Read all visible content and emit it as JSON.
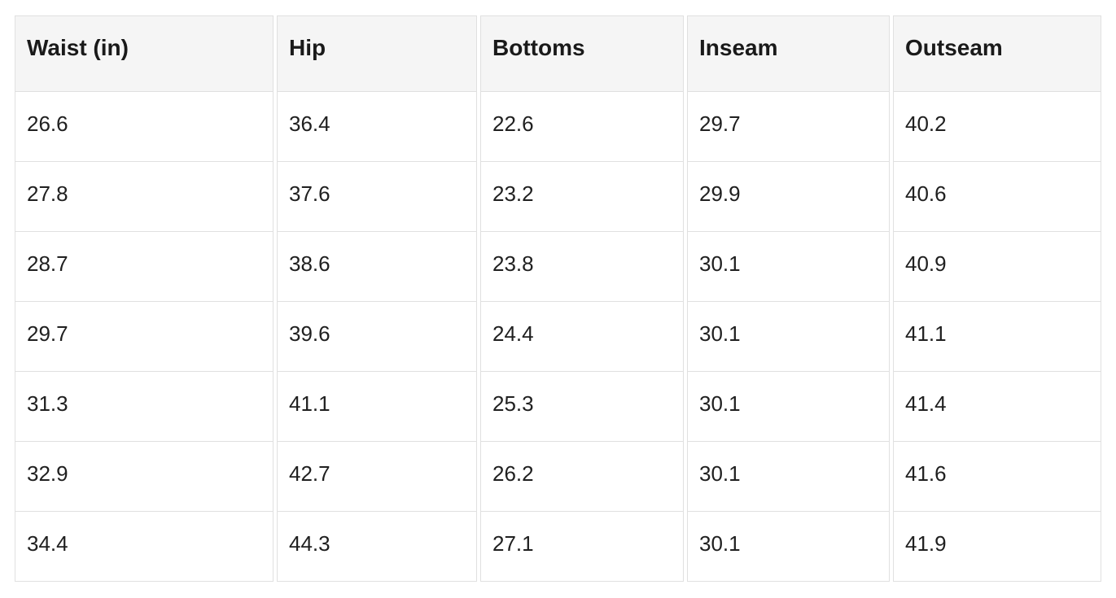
{
  "page": {
    "background": "#ffffff"
  },
  "table": {
    "name": "size-chart",
    "header_bg": "#f5f5f5",
    "border_color": "#e0e0e0",
    "text_color": "#202020",
    "columns": [
      "Waist (in)",
      "Hip",
      "Bottoms",
      "Inseam",
      "Outseam"
    ],
    "rows": [
      [
        "26.6",
        "36.4",
        "22.6",
        "29.7",
        "40.2"
      ],
      [
        "27.8",
        "37.6",
        "23.2",
        "29.9",
        "40.6"
      ],
      [
        "28.7",
        "38.6",
        "23.8",
        "30.1",
        "40.9"
      ],
      [
        "29.7",
        "39.6",
        "24.4",
        "30.1",
        "41.1"
      ],
      [
        "31.3",
        "41.1",
        "25.3",
        "30.1",
        "41.4"
      ],
      [
        "32.9",
        "42.7",
        "26.2",
        "30.1",
        "41.6"
      ],
      [
        "34.4",
        "44.3",
        "27.1",
        "30.1",
        "41.9"
      ]
    ]
  },
  "chart_data": {
    "type": "table",
    "title": "",
    "columns": [
      "Waist (in)",
      "Hip",
      "Bottoms",
      "Inseam",
      "Outseam"
    ],
    "rows": [
      [
        26.6,
        36.4,
        22.6,
        29.7,
        40.2
      ],
      [
        27.8,
        37.6,
        23.2,
        29.9,
        40.6
      ],
      [
        28.7,
        38.6,
        23.8,
        30.1,
        40.9
      ],
      [
        29.7,
        39.6,
        24.4,
        30.1,
        41.1
      ],
      [
        31.3,
        41.1,
        25.3,
        30.1,
        41.4
      ],
      [
        32.9,
        42.7,
        26.2,
        30.1,
        41.6
      ],
      [
        34.4,
        44.3,
        27.1,
        30.1,
        41.9
      ]
    ],
    "layout": {
      "header_background": "#f5f5f5",
      "grid": "on",
      "units": "inches"
    }
  }
}
